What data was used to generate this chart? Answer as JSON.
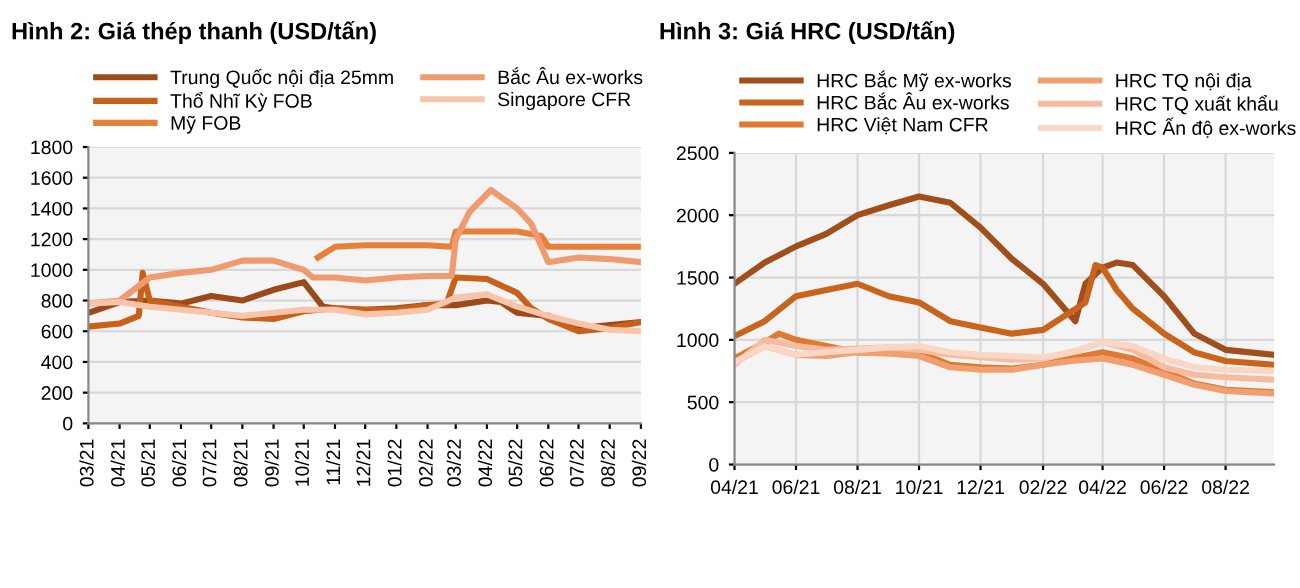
{
  "chart_data": [
    {
      "type": "line",
      "title": "Hình 2: Giá thép thanh (USD/tấn)",
      "legend": "top",
      "grid": "y",
      "xlim": [
        "2021-03-01",
        "2022-09-01"
      ],
      "ylim": [
        0,
        1800
      ],
      "yticks": [
        0,
        200,
        400,
        600,
        800,
        1000,
        1200,
        1400,
        1600,
        1800
      ],
      "xticks": [
        {
          "value": "2021-03-01",
          "label": "03/21"
        },
        {
          "value": "2021-04-01",
          "label": "04/21"
        },
        {
          "value": "2021-05-01",
          "label": "05/21"
        },
        {
          "value": "2021-06-01",
          "label": "06/21"
        },
        {
          "value": "2021-07-01",
          "label": "07/21"
        },
        {
          "value": "2021-08-01",
          "label": "08/21"
        },
        {
          "value": "2021-09-01",
          "label": "09/21"
        },
        {
          "value": "2021-10-01",
          "label": "10/21"
        },
        {
          "value": "2021-11-01",
          "label": "11/21"
        },
        {
          "value": "2021-12-01",
          "label": "12/21"
        },
        {
          "value": "2022-01-01",
          "label": "01/22"
        },
        {
          "value": "2022-02-01",
          "label": "02/22"
        },
        {
          "value": "2022-03-01",
          "label": "03/22"
        },
        {
          "value": "2022-04-01",
          "label": "04/22"
        },
        {
          "value": "2022-05-01",
          "label": "05/22"
        },
        {
          "value": "2022-06-01",
          "label": "06/22"
        },
        {
          "value": "2022-07-01",
          "label": "07/22"
        },
        {
          "value": "2022-08-01",
          "label": "08/22"
        },
        {
          "value": "2022-09-01",
          "label": "09/22"
        }
      ],
      "series": [
        {
          "name": "Trung Quốc nội địa 25mm",
          "color": "#9c4a1a",
          "x": [
            "2021-03-01",
            "2021-04-01",
            "2021-05-01",
            "2021-06-01",
            "2021-07-01",
            "2021-08-01",
            "2021-09-01",
            "2021-10-01",
            "2021-10-20",
            "2021-11-01",
            "2021-12-01",
            "2022-01-01",
            "2022-02-01",
            "2022-03-01",
            "2022-04-01",
            "2022-04-15",
            "2022-05-01",
            "2022-06-01",
            "2022-07-01",
            "2022-08-01",
            "2022-09-01"
          ],
          "values": [
            720,
            790,
            800,
            780,
            830,
            800,
            870,
            920,
            760,
            750,
            740,
            750,
            770,
            770,
            800,
            790,
            720,
            700,
            620,
            640,
            660
          ]
        },
        {
          "name": "Thổ Nhĩ Kỳ FOB",
          "color": "#c8601a",
          "x": [
            "2021-03-01",
            "2021-04-01",
            "2021-04-20",
            "2021-04-24",
            "2021-05-01",
            "2021-06-01",
            "2021-07-01",
            "2021-08-01",
            "2021-09-01",
            "2021-10-01",
            "2021-11-01",
            "2021-12-01",
            "2022-01-01",
            "2022-02-01",
            "2022-02-20",
            "2022-03-01",
            "2022-04-01",
            "2022-05-01",
            "2022-05-15",
            "2022-06-01",
            "2022-07-01",
            "2022-08-01",
            "2022-09-01"
          ],
          "values": [
            630,
            650,
            700,
            980,
            800,
            760,
            720,
            690,
            680,
            730,
            750,
            740,
            740,
            770,
            780,
            950,
            940,
            850,
            750,
            680,
            600,
            620,
            660
          ]
        },
        {
          "name": "Mỹ FOB",
          "color": "#e8803a",
          "x": [
            "2021-10-15",
            "2021-11-01",
            "2021-12-01",
            "2022-01-01",
            "2022-02-01",
            "2022-02-25",
            "2022-03-01",
            "2022-04-01",
            "2022-05-01",
            "2022-05-25",
            "2022-06-01",
            "2022-07-01",
            "2022-08-01",
            "2022-09-01"
          ],
          "values": [
            1080,
            1150,
            1160,
            1160,
            1160,
            1150,
            1250,
            1250,
            1250,
            1220,
            1150,
            1150,
            1150,
            1150
          ]
        },
        {
          "name": "Bắc Âu ex-works",
          "color": "#f09a70",
          "x": [
            "2021-03-01",
            "2021-04-01",
            "2021-05-01",
            "2021-06-01",
            "2021-07-01",
            "2021-08-01",
            "2021-09-01",
            "2021-10-01",
            "2021-10-10",
            "2021-11-01",
            "2021-12-01",
            "2022-01-01",
            "2022-02-01",
            "2022-02-25",
            "2022-03-01",
            "2022-03-15",
            "2022-04-05",
            "2022-04-20",
            "2022-05-01",
            "2022-05-15",
            "2022-06-01",
            "2022-07-01",
            "2022-08-01",
            "2022-09-01"
          ],
          "values": [
            780,
            800,
            950,
            980,
            1000,
            1060,
            1060,
            1000,
            950,
            950,
            930,
            950,
            960,
            960,
            1200,
            1380,
            1520,
            1450,
            1400,
            1300,
            1050,
            1080,
            1070,
            1050
          ]
        },
        {
          "name": "Singapore CFR",
          "color": "#f8c4aa",
          "x": [
            "2021-03-01",
            "2021-04-01",
            "2021-05-01",
            "2021-06-01",
            "2021-07-01",
            "2021-08-01",
            "2021-09-01",
            "2021-10-01",
            "2021-11-01",
            "2021-12-01",
            "2022-01-01",
            "2022-02-01",
            "2022-03-01",
            "2022-04-01",
            "2022-05-01",
            "2022-06-01",
            "2022-07-01",
            "2022-08-01",
            "2022-09-01"
          ],
          "values": [
            780,
            790,
            760,
            740,
            720,
            700,
            720,
            740,
            740,
            710,
            720,
            740,
            820,
            840,
            760,
            700,
            650,
            610,
            600
          ]
        }
      ]
    },
    {
      "type": "line",
      "title": "Hình 3: Giá HRC (USD/tấn)",
      "legend": "top",
      "grid": true,
      "xlim": [
        "2021-04-01",
        "2022-09-18"
      ],
      "ylim": [
        0,
        2500
      ],
      "yticks": [
        0,
        500,
        1000,
        1500,
        2000,
        2500
      ],
      "xticks": [
        {
          "value": "2021-04-01",
          "label": "04/21"
        },
        {
          "value": "2021-06-01",
          "label": "06/21"
        },
        {
          "value": "2021-08-01",
          "label": "08/21"
        },
        {
          "value": "2021-10-01",
          "label": "10/21"
        },
        {
          "value": "2021-12-01",
          "label": "12/21"
        },
        {
          "value": "2022-02-01",
          "label": "02/22"
        },
        {
          "value": "2022-04-01",
          "label": "04/22"
        },
        {
          "value": "2022-06-01",
          "label": "06/22"
        },
        {
          "value": "2022-08-01",
          "label": "08/22"
        }
      ],
      "series": [
        {
          "name": "HRC Bắc Mỹ ex-works",
          "color": "#a04e1c",
          "x": [
            "2021-04-01",
            "2021-05-01",
            "2021-06-01",
            "2021-07-01",
            "2021-08-01",
            "2021-09-01",
            "2021-10-01",
            "2021-11-01",
            "2021-12-01",
            "2022-01-01",
            "2022-02-01",
            "2022-03-05",
            "2022-03-15",
            "2022-04-01",
            "2022-04-15",
            "2022-05-01",
            "2022-06-01",
            "2022-07-01",
            "2022-08-01",
            "2022-09-18"
          ],
          "values": [
            1450,
            1620,
            1750,
            1850,
            2000,
            2080,
            2150,
            2100,
            1900,
            1650,
            1450,
            1150,
            1450,
            1580,
            1620,
            1600,
            1350,
            1050,
            920,
            880
          ]
        },
        {
          "name": "HRC Bắc Âu ex-works",
          "color": "#c8641c",
          "x": [
            "2021-04-01",
            "2021-05-01",
            "2021-06-01",
            "2021-07-01",
            "2021-08-01",
            "2021-09-01",
            "2021-10-01",
            "2021-11-01",
            "2021-12-01",
            "2022-01-01",
            "2022-02-01",
            "2022-03-15",
            "2022-03-25",
            "2022-04-01",
            "2022-04-15",
            "2022-05-01",
            "2022-06-01",
            "2022-07-01",
            "2022-08-01",
            "2022-09-18"
          ],
          "values": [
            1030,
            1150,
            1350,
            1400,
            1450,
            1350,
            1300,
            1150,
            1100,
            1050,
            1080,
            1300,
            1600,
            1580,
            1400,
            1250,
            1050,
            900,
            830,
            800
          ]
        },
        {
          "name": "HRC Việt Nam CFR",
          "color": "#e07a30",
          "x": [
            "2021-04-01",
            "2021-05-01",
            "2021-05-15",
            "2021-06-01",
            "2021-07-01",
            "2021-08-01",
            "2021-10-01",
            "2021-11-01",
            "2021-12-01",
            "2022-01-01",
            "2022-02-01",
            "2022-03-01",
            "2022-04-01",
            "2022-05-01",
            "2022-06-01",
            "2022-07-01",
            "2022-08-01",
            "2022-09-18"
          ],
          "values": [
            850,
            980,
            1050,
            1000,
            950,
            900,
            900,
            800,
            780,
            770,
            800,
            850,
            900,
            850,
            750,
            650,
            600,
            580
          ]
        },
        {
          "name": "HRC TQ nội địa",
          "color": "#f0a070",
          "x": [
            "2021-04-01",
            "2021-05-01",
            "2021-06-01",
            "2021-07-01",
            "2021-08-01",
            "2021-09-01",
            "2021-10-01",
            "2021-11-01",
            "2021-12-01",
            "2022-01-01",
            "2022-02-01",
            "2022-03-01",
            "2022-04-01",
            "2022-05-01",
            "2022-06-01",
            "2022-07-01",
            "2022-08-01",
            "2022-09-18"
          ],
          "values": [
            820,
            950,
            880,
            870,
            900,
            890,
            870,
            780,
            760,
            760,
            800,
            830,
            850,
            800,
            720,
            640,
            590,
            570
          ]
        },
        {
          "name": "HRC TQ xuất khẩu",
          "color": "#f7bca0",
          "x": [
            "2021-04-01",
            "2021-05-01",
            "2021-06-01",
            "2021-07-01",
            "2021-08-01",
            "2021-09-01",
            "2021-10-01",
            "2021-11-01",
            "2021-12-01",
            "2022-01-01",
            "2022-02-01",
            "2022-03-01",
            "2022-04-01",
            "2022-05-01",
            "2022-06-01",
            "2022-07-01",
            "2022-08-01",
            "2022-09-18"
          ],
          "values": [
            800,
            1000,
            950,
            920,
            930,
            940,
            920,
            880,
            860,
            840,
            850,
            900,
            980,
            920,
            780,
            720,
            700,
            680
          ]
        },
        {
          "name": "HRC Ấn độ ex-works",
          "color": "#fad6c4",
          "x": [
            "2021-04-01",
            "2021-05-01",
            "2021-06-01",
            "2021-07-01",
            "2021-08-01",
            "2021-09-01",
            "2021-10-01",
            "2021-11-01",
            "2021-12-01",
            "2022-01-01",
            "2022-02-01",
            "2022-03-01",
            "2022-04-01",
            "2022-05-01",
            "2022-06-01",
            "2022-07-01",
            "2022-08-01",
            "2022-09-18"
          ],
          "values": [
            820,
            950,
            880,
            900,
            920,
            940,
            950,
            900,
            880,
            870,
            860,
            900,
            980,
            950,
            850,
            780,
            760,
            750
          ]
        }
      ]
    }
  ]
}
